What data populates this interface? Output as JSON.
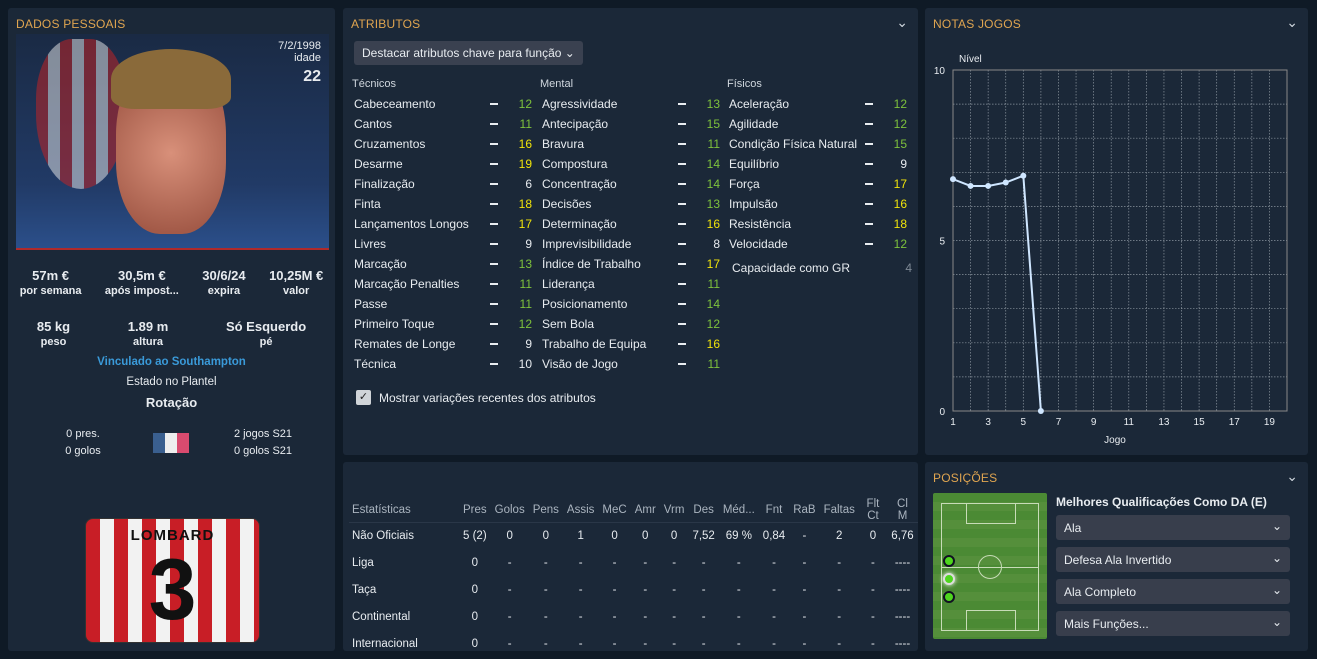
{
  "left": {
    "title": "DADOS PESSOAIS",
    "dob": "7/2/1998",
    "age_label": "idade",
    "age": "22",
    "finance": [
      {
        "v": "57m €",
        "l": "por semana"
      },
      {
        "v": "30,5m €",
        "l": "após impost..."
      },
      {
        "v": "30/6/24",
        "l": "expira"
      },
      {
        "v": "10,25M €",
        "l": "valor"
      }
    ],
    "physical": [
      {
        "v": "85 kg",
        "l": "peso"
      },
      {
        "v": "1.89 m",
        "l": "altura"
      },
      {
        "v": "Só Esquerdo",
        "l": "pé"
      }
    ],
    "club_link": "Vinculado ao Southampton",
    "squad_label": "Estado no Plantel",
    "squad_status": "Rotação",
    "intl_caps": "0 pres.",
    "intl_goals": "0 golos",
    "u21_caps": "2 jogos S21",
    "u21_goals": "0 golos S21",
    "shirt_name": "LOMBARD",
    "shirt_number": "3",
    "club_crest_text": "SOUTHAMPTON"
  },
  "attributes": {
    "title": "ATRIBUTOS",
    "dropdown": "Destacar atributos chave para função",
    "colors": {
      "green": "#7ec13c",
      "yellow": "#f0e40a",
      "white": "#e8ecf0",
      "gray": "#7d8894"
    },
    "columns": [
      {
        "header": "Técnicos",
        "items": [
          [
            "Cabeceamento",
            "12"
          ],
          [
            "Cantos",
            "11"
          ],
          [
            "Cruzamentos",
            "16"
          ],
          [
            "Desarme",
            "19"
          ],
          [
            "Finalização",
            "6"
          ],
          [
            "Finta",
            "18"
          ],
          [
            "Lançamentos Longos",
            "17"
          ],
          [
            "Livres",
            "9"
          ],
          [
            "Marcação",
            "13"
          ],
          [
            "Marcação Penalties",
            "11"
          ],
          [
            "Passe",
            "11"
          ],
          [
            "Primeiro Toque",
            "12"
          ],
          [
            "Remates de Longe",
            "9"
          ],
          [
            "Técnica",
            "10"
          ]
        ]
      },
      {
        "header": "Mental",
        "items": [
          [
            "Agressividade",
            "13"
          ],
          [
            "Antecipação",
            "15"
          ],
          [
            "Bravura",
            "11"
          ],
          [
            "Compostura",
            "14"
          ],
          [
            "Concentração",
            "14"
          ],
          [
            "Decisões",
            "13"
          ],
          [
            "Determinação",
            "16"
          ],
          [
            "Imprevisibilidade",
            "8"
          ],
          [
            "Índice de Trabalho",
            "17"
          ],
          [
            "Liderança",
            "11"
          ],
          [
            "Posicionamento",
            "14"
          ],
          [
            "Sem Bola",
            "12"
          ],
          [
            "Trabalho de Equipa",
            "16"
          ],
          [
            "Visão de Jogo",
            "11"
          ]
        ]
      },
      {
        "header": "Físicos",
        "items": [
          [
            "Aceleração",
            "12"
          ],
          [
            "Agilidade",
            "12"
          ],
          [
            "Condição Física Natural",
            "15"
          ],
          [
            "Equilíbrio",
            "9"
          ],
          [
            "Força",
            "17"
          ],
          [
            "Impulsão",
            "16"
          ],
          [
            "Resistência",
            "18"
          ],
          [
            "Velocidade",
            "12"
          ]
        ]
      }
    ],
    "gk_label": "Capacidade como GR",
    "gk_value": "4",
    "show_changes": "Mostrar variações recentes dos atributos"
  },
  "stats": {
    "headers": [
      "Estatísticas",
      "Pres",
      "Golos",
      "Pens",
      "Assis",
      "MeC",
      "Amr",
      "Vrm",
      "Des",
      "Méd...",
      "Fnt",
      "RaB",
      "Faltas",
      "Flt Ct",
      "Cl M"
    ],
    "rows": [
      [
        "Não Oficiais",
        "5 (2)",
        "0",
        "0",
        "1",
        "0",
        "0",
        "0",
        "7,52",
        "69 %",
        "0,84",
        "-",
        "2",
        "0",
        "6,76"
      ],
      [
        "Liga",
        "0",
        "-",
        "-",
        "-",
        "-",
        "-",
        "-",
        "-",
        "-",
        "-",
        "-",
        "-",
        "-",
        "----"
      ],
      [
        "Taça",
        "0",
        "-",
        "-",
        "-",
        "-",
        "-",
        "-",
        "-",
        "-",
        "-",
        "-",
        "-",
        "-",
        "----"
      ],
      [
        "Continental",
        "0",
        "-",
        "-",
        "-",
        "-",
        "-",
        "-",
        "-",
        "-",
        "-",
        "-",
        "-",
        "-",
        "----"
      ],
      [
        "Internacional",
        "0",
        "-",
        "-",
        "-",
        "-",
        "-",
        "-",
        "-",
        "-",
        "-",
        "-",
        "-",
        "-",
        "----"
      ]
    ]
  },
  "notas": {
    "title": "NOTAS JOGOS",
    "chart_data": {
      "type": "line",
      "ylabel": "Nível",
      "xlabel": "Jogo",
      "xlim": [
        1,
        20
      ],
      "ylim": [
        0,
        10
      ],
      "xticks": [
        "1",
        "3",
        "5",
        "7",
        "9",
        "11",
        "13",
        "15",
        "17",
        "19"
      ],
      "yticks": [
        "0",
        "5",
        "10"
      ],
      "grid": true,
      "x": [
        1,
        2,
        3,
        4,
        5,
        6
      ],
      "y": [
        6.8,
        6.6,
        6.6,
        6.7,
        6.9,
        0
      ],
      "color": "#cfe6ff"
    }
  },
  "positions": {
    "title": "POSIÇÕES",
    "best_label": "Melhores Qualificações Como DA (E)",
    "roles": [
      "Ala",
      "Defesa Ala Invertido",
      "Ala Completo",
      "Mais Funções..."
    ]
  }
}
